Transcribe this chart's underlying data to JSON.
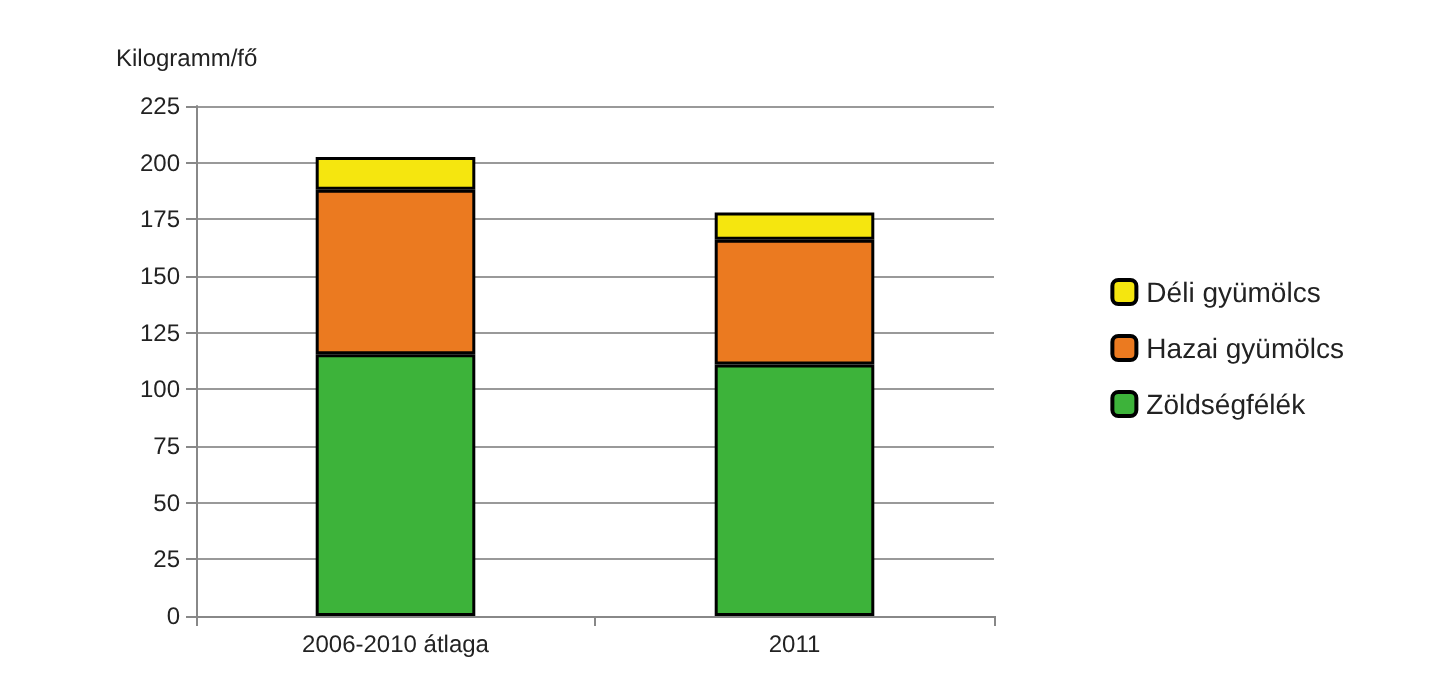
{
  "chart_data": {
    "type": "bar",
    "stacked": true,
    "ylabel": "Kilogramm/fő",
    "categories": [
      "2006-2010 átlaga",
      "2011"
    ],
    "series": [
      {
        "name": "Zöldségfélék",
        "color": "#3db33a",
        "values": [
          115.5,
          111
        ]
      },
      {
        "name": "Hazai gyümölcs",
        "color": "#eb7a20",
        "values": [
          72.5,
          55
        ]
      },
      {
        "name": "Déli gyümölcs",
        "color": "#f5e60f",
        "values": [
          14.5,
          12
        ]
      }
    ],
    "ylim": [
      0,
      225
    ],
    "yticks": [
      0,
      25,
      50,
      75,
      100,
      125,
      150,
      175,
      200,
      225
    ],
    "grid": "y",
    "legend": "right"
  }
}
